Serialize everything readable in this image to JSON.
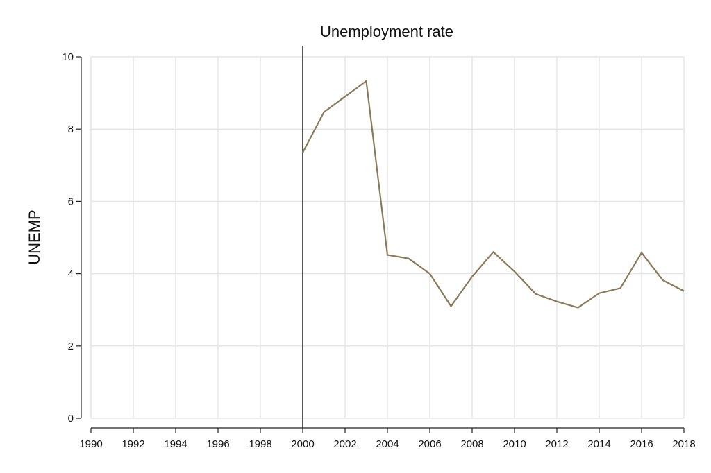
{
  "chart_data": {
    "type": "line",
    "title": "Unemployment rate",
    "xlabel": "",
    "ylabel": "UNEMP",
    "xlim": [
      1990,
      2018
    ],
    "ylim": [
      0,
      10
    ],
    "x_ticks": [
      1990,
      1992,
      1994,
      1996,
      1998,
      2000,
      2002,
      2004,
      2006,
      2008,
      2010,
      2012,
      2014,
      2016,
      2018
    ],
    "y_ticks": [
      0,
      2,
      4,
      6,
      8,
      10
    ],
    "grid": true,
    "reference_line_x": 2000,
    "series": [
      {
        "color": "#8b7a5a",
        "x": [
          2000,
          2001,
          2002,
          2003,
          2004,
          2005,
          2006,
          2007,
          2008,
          2009,
          2010,
          2011,
          2012,
          2013,
          2014,
          2015,
          2016,
          2017,
          2018
        ],
        "values": [
          7.35,
          8.47,
          8.9,
          9.33,
          4.52,
          4.42,
          4.0,
          3.1,
          3.92,
          4.6,
          4.06,
          3.44,
          3.23,
          3.06,
          3.46,
          3.6,
          4.58,
          3.82,
          3.52
        ]
      }
    ]
  }
}
